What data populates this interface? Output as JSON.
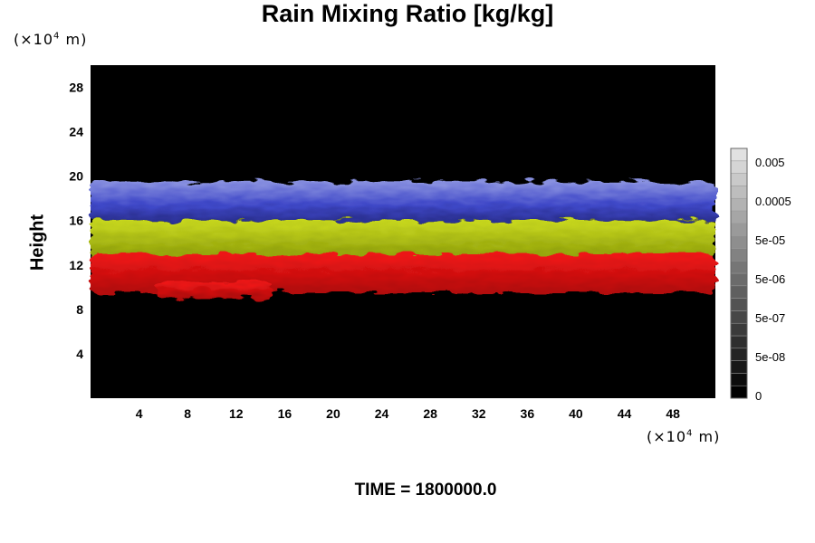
{
  "chart_data": {
    "type": "heatmap",
    "title": "Rain Mixing Ratio [kg/kg]",
    "ylabel": "Height",
    "xlabel": "",
    "y_unit_prefix": "(×10",
    "y_unit_exp": "4",
    "y_unit_suffix": " m)",
    "x_unit_prefix": "(×10",
    "x_unit_exp": "4",
    "x_unit_suffix": " m)",
    "xlim": [
      0,
      51.5
    ],
    "ylim": [
      0,
      30
    ],
    "x_ticks": [
      "4",
      "8",
      "12",
      "16",
      "20",
      "24",
      "28",
      "32",
      "36",
      "40",
      "44",
      "48"
    ],
    "y_ticks": [
      "4",
      "8",
      "12",
      "16",
      "20",
      "24",
      "28"
    ],
    "colorbar_labels": [
      "0.005",
      "0.0005",
      "5e-05",
      "5e-06",
      "5e-07",
      "5e-08",
      "0"
    ],
    "background_color": "#000000",
    "layers": [
      {
        "color": "#4a55d0",
        "y_range": [
          16,
          19.5
        ],
        "x_range": [
          0,
          51.5
        ]
      },
      {
        "color": "#b4cc10",
        "y_range": [
          12.5,
          16
        ],
        "x_range": [
          0,
          51.5
        ]
      },
      {
        "color": "#e01010",
        "y_range": [
          9.5,
          13
        ],
        "x_range": [
          0,
          51.5
        ]
      },
      {
        "color": "#e01010",
        "y_range": [
          9,
          10.5
        ],
        "x_range": [
          5.5,
          15
        ]
      }
    ]
  },
  "time_label": "TIME = 1800000.0"
}
